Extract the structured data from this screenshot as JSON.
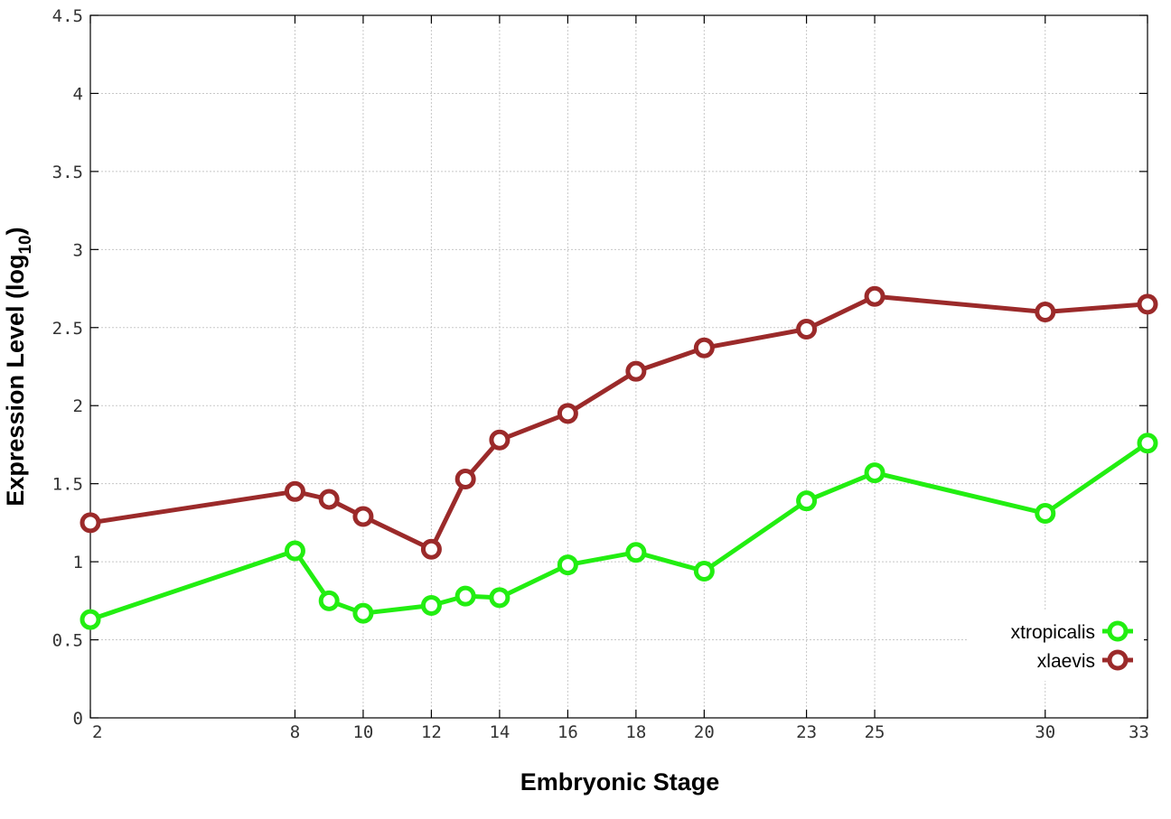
{
  "chart_data": {
    "type": "line",
    "xlabel": "Embryonic Stage",
    "ylabel": "Expression Level (log",
    "ylabel_subscript": "10",
    "ylabel_suffix": ")",
    "x_ticks": [
      2,
      8,
      10,
      12,
      14,
      16,
      18,
      20,
      23,
      25,
      30,
      33
    ],
    "y_ticks": [
      "0",
      "0.5",
      "1",
      "1.5",
      "2",
      "2.5",
      "3",
      "3.5",
      "4",
      "4.5"
    ],
    "xlim": [
      2,
      33
    ],
    "ylim": [
      0,
      4.5
    ],
    "grid": true,
    "legend_position": "bottom-right",
    "series": [
      {
        "name": "xtropicalis",
        "color": "#22ee11",
        "points": [
          {
            "x": 2,
            "y": 0.63
          },
          {
            "x": 8,
            "y": 1.07
          },
          {
            "x": 9,
            "y": 0.75
          },
          {
            "x": 10,
            "y": 0.67
          },
          {
            "x": 12,
            "y": 0.72
          },
          {
            "x": 13,
            "y": 0.78
          },
          {
            "x": 14,
            "y": 0.77
          },
          {
            "x": 16,
            "y": 0.98
          },
          {
            "x": 18,
            "y": 1.06
          },
          {
            "x": 20,
            "y": 0.94
          },
          {
            "x": 23,
            "y": 1.39
          },
          {
            "x": 25,
            "y": 1.57
          },
          {
            "x": 30,
            "y": 1.31
          },
          {
            "x": 33,
            "y": 1.76
          }
        ]
      },
      {
        "name": "xlaevis",
        "color": "#9b2a2a",
        "points": [
          {
            "x": 2,
            "y": 1.25
          },
          {
            "x": 8,
            "y": 1.45
          },
          {
            "x": 9,
            "y": 1.4
          },
          {
            "x": 10,
            "y": 1.29
          },
          {
            "x": 12,
            "y": 1.08
          },
          {
            "x": 13,
            "y": 1.53
          },
          {
            "x": 14,
            "y": 1.78
          },
          {
            "x": 16,
            "y": 1.95
          },
          {
            "x": 18,
            "y": 2.22
          },
          {
            "x": 20,
            "y": 2.37
          },
          {
            "x": 23,
            "y": 2.49
          },
          {
            "x": 25,
            "y": 2.7
          },
          {
            "x": 30,
            "y": 2.6
          },
          {
            "x": 33,
            "y": 2.65
          }
        ]
      }
    ]
  }
}
